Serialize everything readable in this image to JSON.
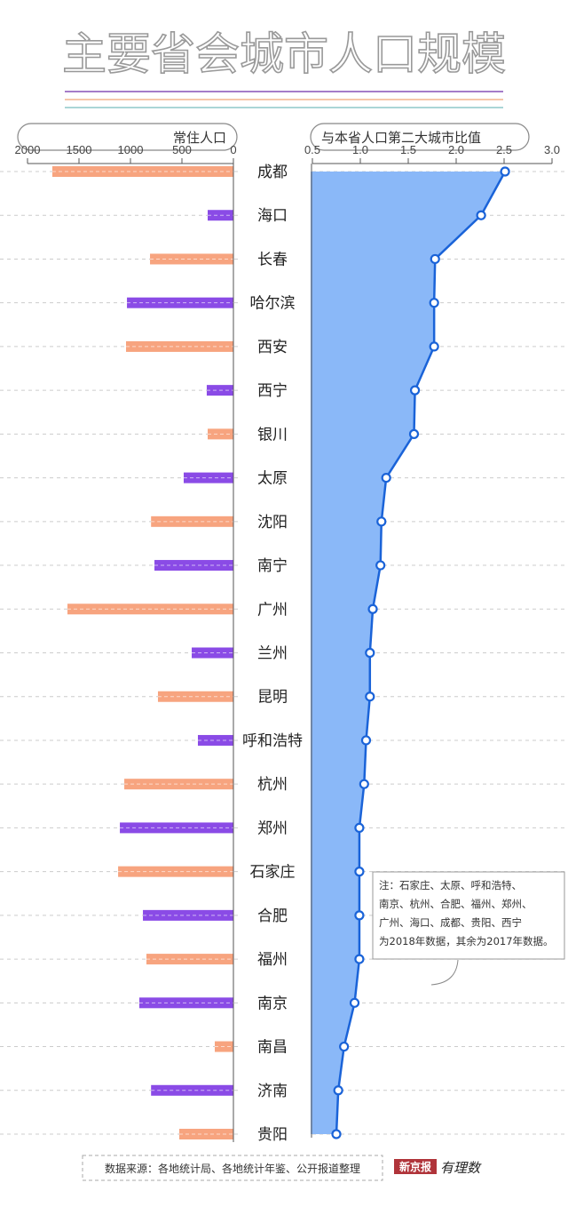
{
  "chart_data": [
    {
      "type": "bar",
      "orientation": "horizontal-left",
      "title": "常住人口",
      "categories": [
        "成都",
        "海口",
        "长春",
        "哈尔滨",
        "西安",
        "西宁",
        "银川",
        "太原",
        "沈阳",
        "南宁",
        "广州",
        "兰州",
        "昆明",
        "呼和浩特",
        "杭州",
        "郑州",
        "石家庄",
        "合肥",
        "福州",
        "南京",
        "南昌",
        "济南",
        "贵阳"
      ],
      "values": [
        1759,
        250,
        810,
        1034,
        1043,
        259,
        250,
        483,
        800,
        767,
        1612,
        405,
        733,
        345,
        1060,
        1103,
        1120,
        879,
        845,
        914,
        181,
        800,
        526
      ],
      "xlim": [
        0,
        2000
      ],
      "xticks": [
        "2000",
        "1500",
        "1000",
        "500",
        "0"
      ],
      "colors": [
        "#f7a47f",
        "#8a4be6"
      ]
    },
    {
      "type": "area",
      "title": "与本省人口第二大城市比值",
      "categories": [
        "成都",
        "海口",
        "长春",
        "哈尔滨",
        "西安",
        "西宁",
        "银川",
        "太原",
        "沈阳",
        "南宁",
        "广州",
        "兰州",
        "昆明",
        "呼和浩特",
        "杭州",
        "郑州",
        "石家庄",
        "合肥",
        "福州",
        "南京",
        "南昌",
        "济南",
        "贵阳"
      ],
      "values": [
        2.51,
        2.26,
        1.78,
        1.77,
        1.77,
        1.57,
        1.56,
        1.27,
        1.22,
        1.21,
        1.13,
        1.1,
        1.1,
        1.06,
        1.04,
        0.99,
        0.99,
        0.99,
        0.99,
        0.94,
        0.83,
        0.77,
        0.75
      ],
      "xlim": [
        0.5,
        3.0
      ],
      "xticks": [
        "0.5",
        "1.0",
        "1.5",
        "2.0",
        "2.5",
        "3.0"
      ],
      "fill_color": "#8ab8f8",
      "line_color": "#1a63d8"
    }
  ],
  "title": "主要省会城市人口规模",
  "note_lines": [
    "注：石家庄、太原、呼和浩特、",
    "南京、杭州、合肥、福州、郑州、",
    "广州、海口、成都、贵阳、西宁",
    "为2018年数据，其余为2017年数据。"
  ],
  "source": "数据来源：各地统计局、各地统计年鉴、公开报道整理",
  "logo": {
    "brand": "新京报",
    "sub": "有理数"
  }
}
